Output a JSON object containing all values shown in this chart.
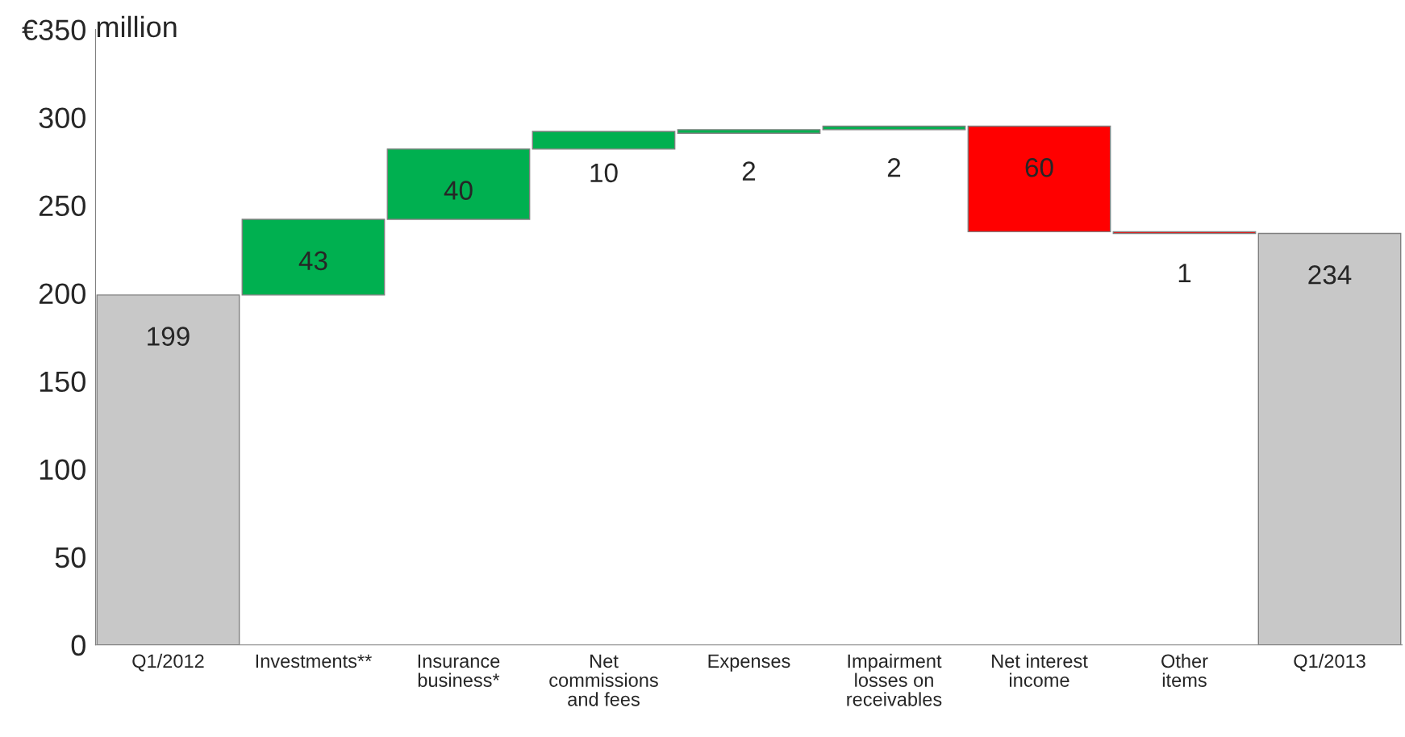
{
  "chart_data": {
    "type": "bar",
    "categories": [
      "Q1/2012",
      "Investments**",
      "Insurance\nbusiness*",
      "Net\ncommissions\nand fees",
      "Expenses",
      "Impairment\nlosses on\nreceivables",
      "Net interest\nincome",
      "Other\nitems",
      "Q1/2013"
    ],
    "values": [
      199,
      43,
      40,
      10,
      2,
      2,
      -60,
      -1,
      234
    ],
    "base": [
      0,
      199,
      242,
      282,
      291,
      293,
      295,
      235,
      0
    ],
    "colors": [
      "#c8c8c8",
      "#00b050",
      "#00b050",
      "#00b050",
      "#00b050",
      "#00b050",
      "#ff0000",
      "#ff0000",
      "#c8c8c8"
    ],
    "value_labels": [
      "199",
      "43",
      "40",
      "10",
      "2",
      "2",
      "60",
      "1",
      "234"
    ],
    "ylim": [
      0,
      350
    ],
    "yticks": [
      0,
      50,
      100,
      150,
      200,
      250,
      300,
      {
        "value": 350,
        "label": "€350"
      }
    ],
    "ylabel": "million",
    "grid": false
  }
}
